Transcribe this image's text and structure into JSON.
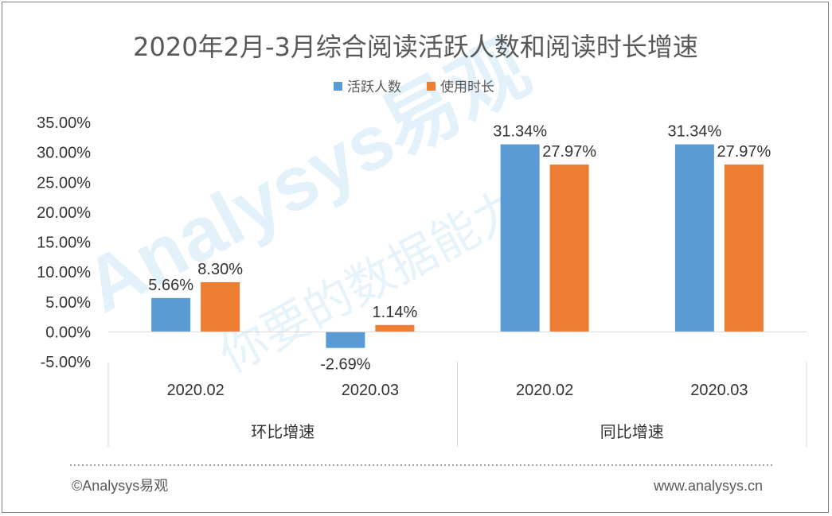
{
  "chart_data": {
    "type": "bar",
    "title": "2020年2月-3月综合阅读活跃人数和阅读时长增速",
    "groups": [
      {
        "label": "环比增速",
        "categories": [
          "2020.02",
          "2020.03"
        ]
      },
      {
        "label": "同比增速",
        "categories": [
          "2020.02",
          "2020.03"
        ]
      }
    ],
    "series": [
      {
        "name": "活跃人数",
        "color": "#5b9bd5",
        "values": [
          5.66,
          -2.69,
          31.34,
          31.34
        ],
        "labels": [
          "5.66%",
          "-2.69%",
          "31.34%",
          "31.34%"
        ]
      },
      {
        "name": "使用时长",
        "color": "#ed7d31",
        "values": [
          8.3,
          1.14,
          27.97,
          27.97
        ],
        "labels": [
          "8.30%",
          "1.14%",
          "27.97%",
          "27.97%"
        ]
      }
    ],
    "ylim": [
      -5,
      35
    ],
    "yticks": [
      35,
      30,
      25,
      20,
      15,
      10,
      5,
      0,
      -5
    ],
    "ytick_labels": [
      "35.00%",
      "30.00%",
      "25.00%",
      "20.00%",
      "15.00%",
      "10.00%",
      "5.00%",
      "0.00%",
      "-5.00%"
    ],
    "legend_position": "top-center",
    "grid": false
  },
  "footer": {
    "left": "©Analysys易观",
    "right": "www.analysys.cn"
  },
  "watermark": {
    "brand": "Analysys易观",
    "slogan": "你要的数据能力"
  }
}
